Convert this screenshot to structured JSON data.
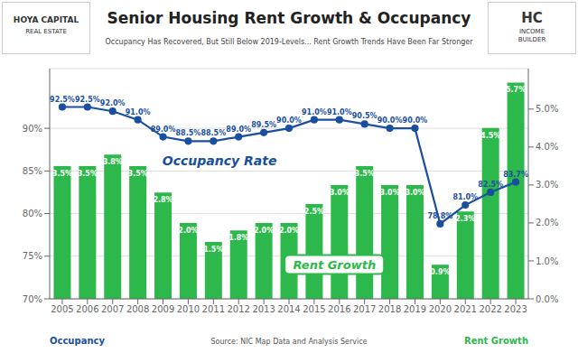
{
  "chart_data": {
    "type": "bar",
    "title": "Senior Housing Rent Growth & Occupancy",
    "subtitle": "Occupancy Has Recovered, But Still Below 2019-Levels... Rent Growth Trends Have Been Far Stronger",
    "categories": [
      "2005",
      "2006",
      "2007",
      "2008",
      "2009",
      "2010",
      "2011",
      "2012",
      "2013",
      "2014",
      "2015",
      "2016",
      "2017",
      "2018",
      "2019",
      "2020",
      "2021",
      "2022",
      "2023"
    ],
    "series": [
      {
        "name": "Rent Growth",
        "type": "bar",
        "axis": "y2",
        "color": "#2db84b",
        "values": [
          3.5,
          3.5,
          3.8,
          3.5,
          2.8,
          2.0,
          1.5,
          1.8,
          2.0,
          2.0,
          2.5,
          3.0,
          3.5,
          3.0,
          3.0,
          0.9,
          2.3,
          4.5,
          5.7
        ],
        "value_labels": [
          "3.5%",
          "3.5%",
          "3.8%",
          "3.5%",
          "2.8%",
          "2.0%",
          "1.5%",
          "1.8%",
          "2.0%",
          "2.0%",
          "2.5%",
          "3.0%",
          "3.5%",
          "3.0%",
          "3.0%",
          "0.9%",
          "2.3%",
          "4.5%",
          "5.7%"
        ]
      },
      {
        "name": "Occupancy",
        "type": "line",
        "color": "#1a4fa0",
        "marker": "circle",
        "values": [
          92.5,
          92.5,
          92.0,
          91.0,
          89.0,
          88.5,
          88.5,
          89.0,
          89.5,
          90.0,
          91.0,
          91.0,
          90.5,
          90.0,
          90.0,
          78.8,
          81.0,
          82.5,
          83.7
        ],
        "value_labels": [
          "92.5%",
          "92.5%",
          "92.0%",
          "91.0%",
          "89.0%",
          "88.5%",
          "88.5%",
          "89.0%",
          "89.5%",
          "90.0%",
          "91.0%",
          "91.0%",
          "90.5%",
          "90.0%",
          "90.0%",
          "78.8%",
          "81.0%",
          "82.5%",
          "83.7%"
        ]
      }
    ],
    "ylim": [
      70,
      97
    ],
    "yticks": [
      {
        "value": 70,
        "label": "70%"
      },
      {
        "value": 75,
        "label": "75%"
      },
      {
        "value": 80,
        "label": "80%"
      },
      {
        "value": 85,
        "label": "85%"
      },
      {
        "value": 90,
        "label": "90%"
      }
    ],
    "y2lim": [
      0.0,
      6.0667
    ],
    "y2ticks": [
      {
        "value": 0.0,
        "label": "0.0%"
      },
      {
        "value": 1.0,
        "label": "1.0%"
      },
      {
        "value": 2.0,
        "label": "2.0%"
      },
      {
        "value": 3.0,
        "label": "3.0%"
      },
      {
        "value": 4.0,
        "label": "4.0%"
      },
      {
        "value": 5.0,
        "label": "5.0%"
      }
    ],
    "grid": true,
    "data_labels": true,
    "annotations": [
      "Occupancy Rate",
      "Rent Growth",
      "Occupancy",
      "Source: NIC Map Data and Analysis Service",
      "Rent Growth",
      "HOYA CAPITAL",
      "REAL ESTATE",
      "HC",
      "INCOME\nBUILDER"
    ]
  }
}
